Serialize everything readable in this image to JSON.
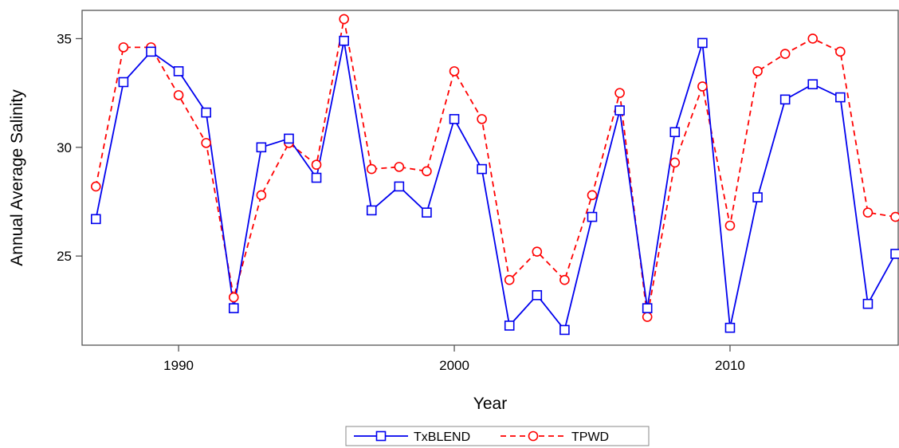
{
  "chart_data": {
    "type": "line",
    "xlabel": "Year",
    "ylabel": "Annual Average Salinity",
    "xlim": [
      1986.5,
      2016.1
    ],
    "ylim": [
      20.9,
      36.3
    ],
    "x_ticks": [
      1990,
      2000,
      2010
    ],
    "y_ticks": [
      25,
      30,
      35
    ],
    "grid": false,
    "legend_position": "bottom-center",
    "x": [
      1987,
      1988,
      1989,
      1990,
      1991,
      1992,
      1993,
      1994,
      1995,
      1996,
      1997,
      1998,
      1999,
      2000,
      2001,
      2002,
      2003,
      2004,
      2005,
      2006,
      2007,
      2008,
      2009,
      2010,
      2011,
      2012,
      2013,
      2014,
      2015,
      2016
    ],
    "series": [
      {
        "name": "TxBLEND",
        "color": "#0000ee",
        "line_style": "solid",
        "marker": "square",
        "values": [
          26.7,
          33.0,
          34.4,
          33.5,
          31.6,
          22.6,
          30.0,
          30.4,
          28.6,
          34.9,
          27.1,
          28.2,
          27.0,
          31.3,
          29.0,
          21.8,
          23.2,
          21.6,
          26.8,
          31.7,
          22.6,
          30.7,
          34.8,
          21.7,
          27.7,
          32.2,
          32.9,
          32.3,
          22.8,
          25.1
        ]
      },
      {
        "name": "TPWD",
        "color": "#ff0000",
        "line_style": "dashed",
        "marker": "circle",
        "values": [
          28.2,
          34.6,
          34.6,
          32.4,
          30.2,
          23.1,
          27.8,
          30.2,
          29.2,
          35.9,
          29.0,
          29.1,
          28.9,
          33.5,
          31.3,
          23.9,
          25.2,
          23.9,
          27.8,
          32.5,
          22.2,
          29.3,
          32.8,
          26.4,
          33.5,
          34.3,
          35.0,
          34.4,
          27.0,
          26.8
        ]
      }
    ]
  }
}
